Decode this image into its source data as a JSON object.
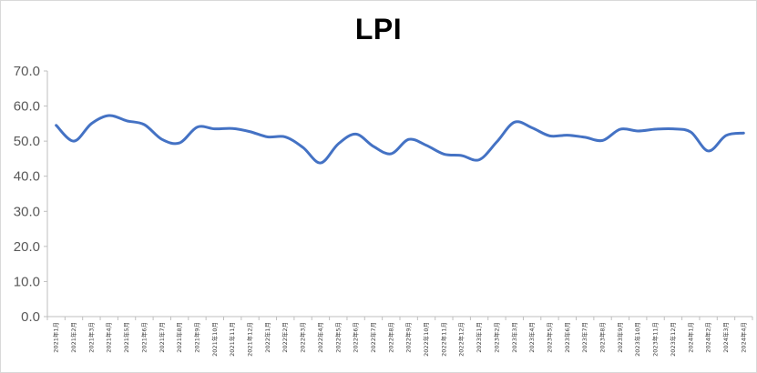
{
  "chart_data": {
    "type": "line",
    "title": "LPI",
    "xlabel": "",
    "ylabel": "",
    "ylim": [
      0,
      70
    ],
    "yticks": [
      "0.0",
      "10.0",
      "20.0",
      "30.0",
      "40.0",
      "50.0",
      "60.0",
      "70.0"
    ],
    "grid": false,
    "line_color": "#4472c4",
    "categories": [
      "2021年1月",
      "2021年2月",
      "2021年3月",
      "2021年4月",
      "2021年5月",
      "2021年6月",
      "2021年7月",
      "2021年8月",
      "2021年9月",
      "2021年10月",
      "2021年11月",
      "2021年12月",
      "2022年1月",
      "2022年2月",
      "2022年3月",
      "2022年4月",
      "2022年5月",
      "2022年6月",
      "2022年7月",
      "2022年8月",
      "2022年9月",
      "2022年10月",
      "2022年11月",
      "2022年12月",
      "2023年1月",
      "2023年2月",
      "2023年3月",
      "2023年4月",
      "2023年5月",
      "2023年6月",
      "2023年7月",
      "2023年8月",
      "2023年9月",
      "2023年10月",
      "2023年11月",
      "2023年12月",
      "2024年1月",
      "2024年2月",
      "2024年3月",
      "2024年4月"
    ],
    "series": [
      {
        "values": [
          54.5,
          50.0,
          55.0,
          57.3,
          55.8,
          54.7,
          50.5,
          49.5,
          54.0,
          53.5,
          53.6,
          52.7,
          51.2,
          51.2,
          48.2,
          43.8,
          49.2,
          52.0,
          48.5,
          46.4,
          50.5,
          48.8,
          46.3,
          45.9,
          44.7,
          49.8,
          55.4,
          53.8,
          51.5,
          51.7,
          51.1,
          50.2,
          53.4,
          52.9,
          53.4,
          53.5,
          52.6,
          47.2,
          51.6,
          52.3
        ]
      }
    ]
  }
}
